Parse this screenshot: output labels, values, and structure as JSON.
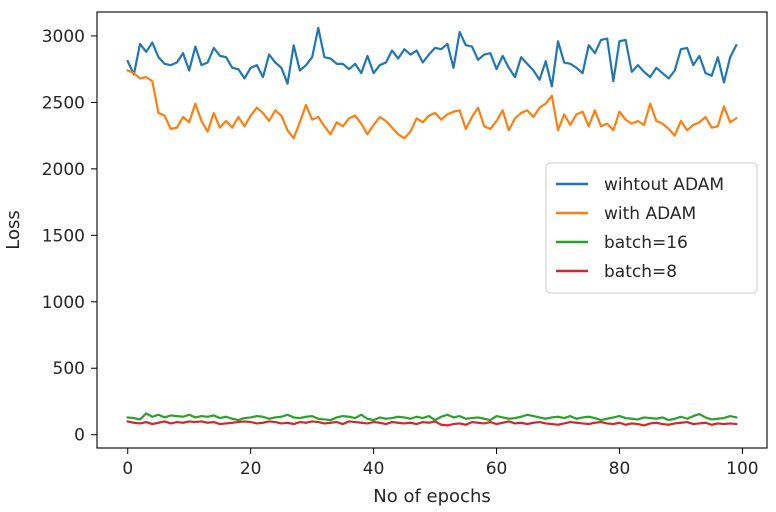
{
  "chart_data": {
    "type": "line",
    "title": "",
    "xlabel": "No of epochs",
    "ylabel": "Loss",
    "xlim": [
      -5,
      104
    ],
    "ylim": [
      -100,
      3180
    ],
    "xticks": [
      0,
      20,
      40,
      60,
      80,
      100
    ],
    "yticks": [
      0,
      500,
      1000,
      1500,
      2000,
      2500,
      3000
    ],
    "grid": false,
    "legend_position": "right",
    "series": [
      {
        "name": "wihtout ADAM",
        "color": "#1f77b4",
        "values": [
          2810,
          2710,
          2940,
          2880,
          2950,
          2840,
          2790,
          2780,
          2800,
          2870,
          2740,
          2920,
          2780,
          2800,
          2910,
          2850,
          2840,
          2760,
          2750,
          2680,
          2760,
          2780,
          2690,
          2860,
          2800,
          2760,
          2640,
          2930,
          2740,
          2780,
          2840,
          3060,
          2840,
          2830,
          2790,
          2790,
          2750,
          2790,
          2720,
          2850,
          2720,
          2780,
          2800,
          2890,
          2830,
          2900,
          2860,
          2890,
          2800,
          2860,
          2910,
          2900,
          2940,
          2760,
          3030,
          2930,
          2920,
          2820,
          2860,
          2870,
          2750,
          2850,
          2760,
          2690,
          2840,
          2790,
          2740,
          2670,
          2810,
          2620,
          2960,
          2800,
          2790,
          2760,
          2720,
          2930,
          2870,
          2970,
          2980,
          2660,
          2960,
          2970,
          2730,
          2780,
          2730,
          2690,
          2760,
          2720,
          2680,
          2740,
          2900,
          2910,
          2780,
          2850,
          2720,
          2700,
          2840,
          2650,
          2840,
          2930
        ]
      },
      {
        "name": "with ADAM",
        "color": "#ff7f0e",
        "values": [
          2740,
          2720,
          2680,
          2690,
          2660,
          2420,
          2400,
          2300,
          2310,
          2390,
          2350,
          2490,
          2360,
          2280,
          2420,
          2310,
          2360,
          2310,
          2390,
          2320,
          2400,
          2460,
          2420,
          2360,
          2440,
          2400,
          2290,
          2230,
          2350,
          2480,
          2370,
          2390,
          2320,
          2260,
          2350,
          2320,
          2380,
          2400,
          2340,
          2260,
          2330,
          2390,
          2360,
          2310,
          2260,
          2230,
          2280,
          2380,
          2350,
          2400,
          2420,
          2370,
          2410,
          2430,
          2440,
          2300,
          2390,
          2460,
          2320,
          2300,
          2360,
          2440,
          2290,
          2380,
          2420,
          2440,
          2390,
          2460,
          2490,
          2550,
          2290,
          2410,
          2330,
          2410,
          2430,
          2320,
          2440,
          2320,
          2340,
          2290,
          2430,
          2370,
          2340,
          2360,
          2330,
          2490,
          2360,
          2340,
          2300,
          2250,
          2360,
          2290,
          2330,
          2350,
          2390,
          2310,
          2320,
          2470,
          2350,
          2380
        ]
      },
      {
        "name": "batch=16",
        "color": "#2ca02c",
        "values": [
          130,
          125,
          115,
          160,
          135,
          150,
          130,
          145,
          140,
          135,
          150,
          130,
          140,
          135,
          145,
          125,
          135,
          120,
          110,
          125,
          130,
          140,
          135,
          120,
          130,
          135,
          150,
          130,
          125,
          135,
          140,
          120,
          115,
          110,
          130,
          140,
          135,
          125,
          150,
          120,
          110,
          130,
          120,
          125,
          135,
          130,
          120,
          135,
          125,
          140,
          110,
          135,
          150,
          130,
          140,
          120,
          125,
          130,
          120,
          110,
          140,
          130,
          120,
          125,
          135,
          150,
          140,
          130,
          120,
          130,
          135,
          125,
          140,
          120,
          130,
          135,
          125,
          110,
          120,
          130,
          140,
          125,
          120,
          115,
          130,
          125,
          120,
          130,
          110,
          120,
          135,
          120,
          140,
          155,
          130,
          115,
          120,
          125,
          140,
          130
        ]
      },
      {
        "name": "batch=8",
        "color": "#d62728",
        "values": [
          100,
          90,
          85,
          95,
          80,
          90,
          100,
          85,
          95,
          90,
          100,
          95,
          100,
          90,
          95,
          80,
          85,
          90,
          95,
          100,
          95,
          85,
          90,
          100,
          95,
          85,
          90,
          80,
          95,
          90,
          100,
          95,
          85,
          90,
          95,
          80,
          100,
          95,
          90,
          85,
          95,
          90,
          80,
          95,
          90,
          85,
          90,
          80,
          95,
          90,
          100,
          75,
          70,
          80,
          85,
          75,
          95,
          90,
          85,
          95,
          80,
          90,
          100,
          85,
          90,
          80,
          90,
          95,
          85,
          80,
          75,
          85,
          95,
          90,
          85,
          80,
          90,
          95,
          85,
          80,
          90,
          75,
          85,
          80,
          70,
          85,
          90,
          80,
          75,
          85,
          90,
          95,
          80,
          85,
          90,
          75,
          85,
          80,
          85,
          80
        ]
      }
    ]
  }
}
